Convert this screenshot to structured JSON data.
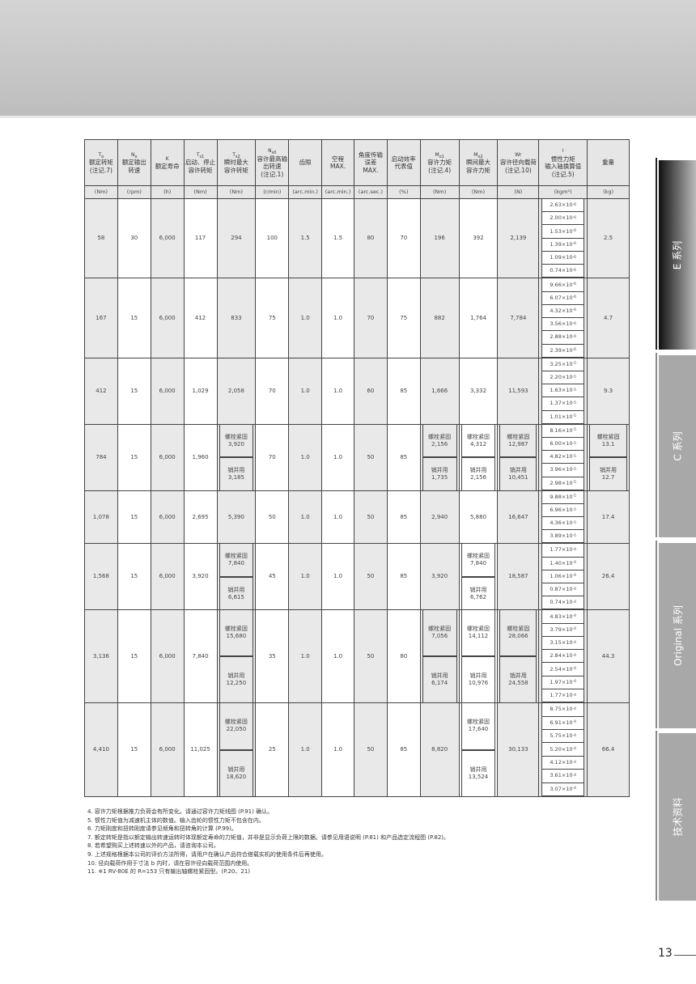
{
  "header": [
    {
      "sym": "T",
      "sub": "o",
      "lines": [
        "额定转矩",
        "(注记.7)"
      ]
    },
    {
      "sym": "N",
      "sub": "o",
      "lines": [
        "额定输出",
        "转速"
      ]
    },
    {
      "sym": "K",
      "sub": "",
      "lines": [
        "额定寿命"
      ]
    },
    {
      "sym": "T",
      "sub": "s1",
      "lines": [
        "启动、停止",
        "容许转矩"
      ]
    },
    {
      "sym": "T",
      "sub": "s2",
      "lines": [
        "瞬时最大",
        "容许转矩"
      ]
    },
    {
      "sym": "N",
      "sub": "s0",
      "lines": [
        "容许最高输",
        "出转速",
        "(注记.1)"
      ]
    },
    {
      "sym": "",
      "sub": "",
      "lines": [
        "齿隙"
      ]
    },
    {
      "sym": "",
      "sub": "",
      "lines": [
        "空程",
        "MAX."
      ]
    },
    {
      "sym": "",
      "sub": "",
      "lines": [
        "角度传输",
        "误差",
        "MAX."
      ]
    },
    {
      "sym": "",
      "sub": "",
      "lines": [
        "启动效率",
        "代表值"
      ]
    },
    {
      "sym": "M",
      "sub": "o1",
      "lines": [
        "容许力矩",
        "(注记.4)"
      ]
    },
    {
      "sym": "M",
      "sub": "o2",
      "lines": [
        "瞬间最大",
        "容许力矩"
      ]
    },
    {
      "sym": "Wr",
      "sub": "",
      "lines": [
        "容许径向载荷",
        "(注记.10)"
      ]
    },
    {
      "sym": "I",
      "sub": "",
      "lines": [
        "惯性力矩",
        "输入轴换算值",
        "(注记.5)"
      ]
    },
    {
      "sym": "",
      "sub": "",
      "lines": [
        "重量"
      ]
    }
  ],
  "units": [
    "(Nm)",
    "(rpm)",
    "(h)",
    "(Nm)",
    "(Nm)",
    "(r/min)",
    "(arc.min.)",
    "(arc.min.)",
    "(arc.sec.)",
    "(%)",
    "(Nm)",
    "(Nm)",
    "(N)",
    "(kgm²)",
    "(kg)"
  ],
  "split_labels": {
    "bolt": "螺栓紧固",
    "pin": "销并用"
  },
  "groups": [
    {
      "cells": [
        "58",
        "30",
        "6,000",
        "117",
        "294",
        "100",
        "1.5",
        "1.5",
        "80",
        "70",
        "196",
        "392",
        "2,139"
      ],
      "exp": "-6",
      "inertia": [
        "2.63",
        "2.00",
        "1.53",
        "1.39",
        "1.09",
        "0.74"
      ],
      "weight": "2.5"
    },
    {
      "cells": [
        "167",
        "15",
        "6,000",
        "412",
        "833",
        "75",
        "1.0",
        "1.0",
        "70",
        "75",
        "882",
        "1,764",
        "7,784"
      ],
      "exp": "-6",
      "inertia": [
        "9.66",
        "6.07",
        "4.32",
        "3.56",
        "2.88",
        "2.39"
      ],
      "weight": "4.7"
    },
    {
      "cells": [
        "412",
        "15",
        "6,000",
        "1,029",
        "2,058",
        "70",
        "1.0",
        "1.0",
        "60",
        "85",
        "1,666",
        "3,332",
        "11,593"
      ],
      "exp": "-5",
      "inertia": [
        "3.25",
        "2.20",
        "1.63",
        "1.37",
        "1.01"
      ],
      "weight": "9.3"
    },
    {
      "cells": [
        "784",
        "15",
        "6,000",
        "1,960",
        [
          "3,920",
          "3,185"
        ],
        "70",
        "1.0",
        "1.0",
        "50",
        "85",
        [
          "2,156",
          "1,735"
        ],
        [
          "4,312",
          "2,156"
        ],
        [
          "12,987",
          "10,451"
        ]
      ],
      "exp": "-5",
      "inertia": [
        "8.16",
        "6.00",
        "4.82",
        "3.96",
        "2.98"
      ],
      "weight": [
        "13.1",
        "12.7"
      ]
    },
    {
      "cells": [
        "1,078",
        "15",
        "6,000",
        "2,695",
        "5,390",
        "50",
        "1.0",
        "1.0",
        "50",
        "85",
        "2,940",
        "5,880",
        "16,647"
      ],
      "exp": "-5",
      "inertia": [
        "9.88",
        "6.96",
        "4.36",
        "3.89"
      ],
      "weight": "17.4"
    },
    {
      "cells": [
        "1,568",
        "15",
        "6,000",
        "3,920",
        [
          "7,840",
          "6,615"
        ],
        "45",
        "1.0",
        "1.0",
        "50",
        "85",
        "3,920",
        [
          "7,840",
          "6,762"
        ],
        "18,587"
      ],
      "exp": "-4",
      "inertia": [
        "1.77",
        "1.40",
        "1.06",
        "0.87",
        "0.74"
      ],
      "weight": "26.4"
    },
    {
      "cells": [
        "3,136",
        "15",
        "6,000",
        "7,840",
        [
          "15,680",
          "12,250"
        ],
        "35",
        "1.0",
        "1.0",
        "50",
        "80",
        [
          "7,056",
          "6,174"
        ],
        [
          "14,112",
          "10,976"
        ],
        [
          "28,066",
          "24,558"
        ]
      ],
      "exp": "-4",
      "inertia": [
        "4.83",
        "3.79",
        "3.15",
        "2.84",
        "2.54",
        "1.97",
        "1.77"
      ],
      "weight": "44.3"
    },
    {
      "cells": [
        "4,410",
        "15",
        "6,000",
        "11,025",
        [
          "22,050",
          "18,620"
        ],
        "25",
        "1.0",
        "1.0",
        "50",
        "85",
        "8,820",
        [
          "17,640",
          "13,524"
        ],
        "30,133"
      ],
      "exp": "-4",
      "inertia": [
        "8.75",
        "6.91",
        "5.75",
        "5.20",
        "4.12",
        "3.61",
        "3.07"
      ],
      "weight": "66.4"
    }
  ],
  "notes": [
    "4. 容许力矩根据推力负荷会有所变化。请通过容许力矩线图 (P.91) 确认。",
    "5. 惯性力矩值为减速机主体的数值。输入齿轮的惯性力矩不包含在内。",
    "6. 力矩刚度和扭转刚度请参见倾角和扭转角的计算 (P.99)。",
    "7. 额定转矩是指以额定输出转速运转时体现额定寿命的力矩值，并非是显示负荷上限的数据。请参见用语说明 (P.81) 和产品选定流程图 (P.82)。",
    "8. 若希望购买上述转速以外的产品，请咨询本公司。",
    "9. 上述规格根据本公司的评价方法所得，请用户在确认产品符合搭载实机的使用条件后再使用。",
    "10. 径向载荷作用于寸法 b 内时，请在容许径向载荷范围内使用。",
    "11. ※1 RV-80E 的 R=153 只有输出轴螺栓紧固型。(P.20、21)"
  ],
  "side_tabs": [
    {
      "label": "E 系列",
      "active": true
    },
    {
      "label": "C 系列",
      "active": false
    },
    {
      "label": "Original 系列",
      "active": false
    },
    {
      "label": "技术资料",
      "active": false
    }
  ],
  "page_number": "13"
}
